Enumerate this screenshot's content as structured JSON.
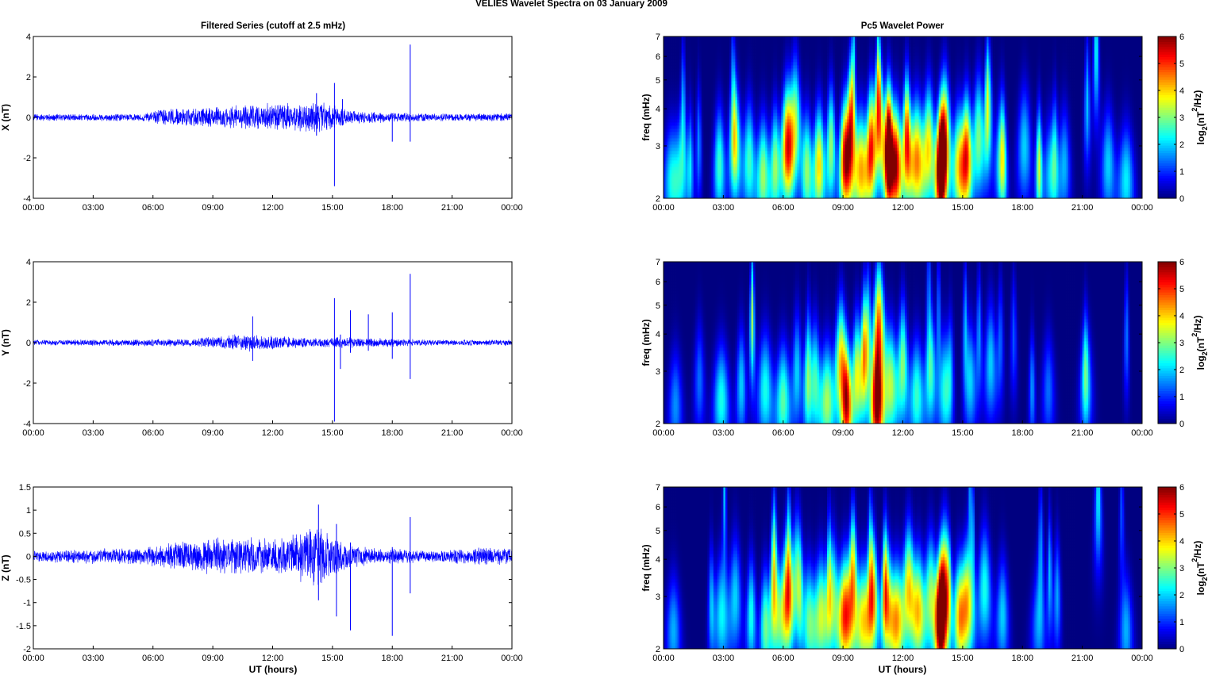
{
  "figure": {
    "title": "VELIES Wavelet Spectra on 03 January   2009",
    "left_column_title": "Filtered Series (cutoff at 2.5 mHz)",
    "right_column_title": "Pc5 Wavelet Power",
    "xlabel": "UT (hours)"
  },
  "colorbar": {
    "label": "log2(nT2/Hz)",
    "label_base": "log",
    "label_sub": "2",
    "label_paren_open": "(nT",
    "label_sup": "2",
    "label_tail": "/Hz)",
    "range": [
      0,
      6
    ],
    "ticks": [
      "0",
      "1",
      "2",
      "3",
      "4",
      "5",
      "6"
    ],
    "colormap": "jet"
  },
  "chart_data": [
    {
      "type": "line",
      "component": "X",
      "ylabel": "X (nT)",
      "xlim": [
        "00:00",
        "24:00"
      ],
      "xticks": [
        "00:00",
        "03:00",
        "06:00",
        "09:00",
        "12:00",
        "15:00",
        "18:00",
        "21:00",
        "00:00"
      ],
      "ylim": [
        -4,
        4
      ],
      "yticks": [
        "-4",
        "-2",
        "0",
        "2",
        "4"
      ],
      "color": "#0000ff",
      "noise_envelope": [
        {
          "t": 0,
          "amp": 0.18
        },
        {
          "t": 5.5,
          "amp": 0.2
        },
        {
          "t": 6.5,
          "amp": 0.45
        },
        {
          "t": 9,
          "amp": 0.55
        },
        {
          "t": 11,
          "amp": 0.7
        },
        {
          "t": 14.2,
          "amp": 0.9
        },
        {
          "t": 16,
          "amp": 0.35
        },
        {
          "t": 20,
          "amp": 0.2
        },
        {
          "t": 24,
          "amp": 0.22
        }
      ],
      "spikes": [
        {
          "t": 14.2,
          "min": -0.9,
          "max": 1.2
        },
        {
          "t": 15.1,
          "min": -3.4,
          "max": 1.7
        },
        {
          "t": 15.5,
          "min": -0.4,
          "max": 0.9
        },
        {
          "t": 18.0,
          "min": -1.2,
          "max": 0.2
        },
        {
          "t": 18.9,
          "min": -1.2,
          "max": 3.6
        }
      ]
    },
    {
      "type": "line",
      "component": "Y",
      "ylabel": "Y (nT)",
      "xlim": [
        "00:00",
        "24:00"
      ],
      "xticks": [
        "00:00",
        "03:00",
        "06:00",
        "09:00",
        "12:00",
        "15:00",
        "18:00",
        "21:00",
        "00:00"
      ],
      "ylim": [
        -4,
        4
      ],
      "yticks": [
        "-4",
        "-2",
        "0",
        "2",
        "4"
      ],
      "color": "#0000ff",
      "noise_envelope": [
        {
          "t": 0,
          "amp": 0.15
        },
        {
          "t": 8,
          "amp": 0.2
        },
        {
          "t": 9.5,
          "amp": 0.4
        },
        {
          "t": 11,
          "amp": 0.45
        },
        {
          "t": 14,
          "amp": 0.25
        },
        {
          "t": 16,
          "amp": 0.3
        },
        {
          "t": 20,
          "amp": 0.15
        },
        {
          "t": 24,
          "amp": 0.15
        }
      ],
      "spikes": [
        {
          "t": 11.0,
          "min": -0.9,
          "max": 1.3
        },
        {
          "t": 15.1,
          "min": -3.9,
          "max": 2.2
        },
        {
          "t": 15.4,
          "min": -1.3,
          "max": 0.4
        },
        {
          "t": 15.9,
          "min": -0.5,
          "max": 1.6
        },
        {
          "t": 16.8,
          "min": -0.4,
          "max": 1.4
        },
        {
          "t": 18.0,
          "min": -0.8,
          "max": 1.5
        },
        {
          "t": 18.9,
          "min": -1.8,
          "max": 3.4
        }
      ]
    },
    {
      "type": "line",
      "component": "Z",
      "ylabel": "Z (nT)",
      "xlim": [
        "00:00",
        "24:00"
      ],
      "xticks": [
        "00:00",
        "03:00",
        "06:00",
        "09:00",
        "12:00",
        "15:00",
        "18:00",
        "21:00",
        "00:00"
      ],
      "ylim": [
        -2,
        1.5
      ],
      "yticks": [
        "-2",
        "-1.5",
        "-1",
        "-0.5",
        "0",
        "0.5",
        "1",
        "1.5"
      ],
      "color": "#0000ff",
      "noise_envelope": [
        {
          "t": 0,
          "amp": 0.13
        },
        {
          "t": 5.5,
          "amp": 0.2
        },
        {
          "t": 6.5,
          "amp": 0.3
        },
        {
          "t": 9.5,
          "amp": 0.45
        },
        {
          "t": 12,
          "amp": 0.4
        },
        {
          "t": 14.3,
          "amp": 0.7
        },
        {
          "t": 16,
          "amp": 0.25
        },
        {
          "t": 20,
          "amp": 0.13
        },
        {
          "t": 21.5,
          "amp": 0.2
        },
        {
          "t": 24,
          "amp": 0.2
        }
      ],
      "spikes": [
        {
          "t": 14.3,
          "min": -0.95,
          "max": 1.12
        },
        {
          "t": 15.2,
          "min": -1.3,
          "max": 0.7
        },
        {
          "t": 15.9,
          "min": -1.6,
          "max": 0.3
        },
        {
          "t": 18.0,
          "min": -1.72,
          "max": 0.2
        },
        {
          "t": 18.9,
          "min": -0.8,
          "max": 0.85
        }
      ]
    },
    {
      "type": "heatmap",
      "component": "X",
      "ylabel": "freq (mHz)",
      "xlim": [
        "00:00",
        "24:00"
      ],
      "xticks": [
        "00:00",
        "03:00",
        "06:00",
        "09:00",
        "12:00",
        "15:00",
        "18:00",
        "21:00",
        "00:00"
      ],
      "ylim": [
        2,
        7
      ],
      "yscale": "log",
      "yticks": [
        "2",
        "3",
        "4",
        "5",
        "6",
        "7"
      ],
      "zlim": [
        0,
        6
      ],
      "blobs": [
        {
          "t": 0.4,
          "f": 2.3,
          "p": 2.2
        },
        {
          "t": 0.9,
          "f": 2.5,
          "p": 1.8
        },
        {
          "t": 2.8,
          "f": 2.6,
          "p": 2.6
        },
        {
          "t": 3.6,
          "f": 3.0,
          "p": 2.4
        },
        {
          "t": 4.3,
          "f": 2.7,
          "p": 2.6
        },
        {
          "t": 5.0,
          "f": 2.4,
          "p": 3.2
        },
        {
          "t": 5.6,
          "f": 2.6,
          "p": 3.0
        },
        {
          "t": 6.2,
          "f": 3.0,
          "p": 4.8
        },
        {
          "t": 6.6,
          "f": 3.6,
          "p": 3.2
        },
        {
          "t": 7.2,
          "f": 2.5,
          "p": 3.0
        },
        {
          "t": 7.8,
          "f": 2.6,
          "p": 4.0
        },
        {
          "t": 8.4,
          "f": 3.0,
          "p": 3.2
        },
        {
          "t": 9.1,
          "f": 2.7,
          "p": 5.4
        },
        {
          "t": 9.4,
          "f": 3.6,
          "p": 4.5
        },
        {
          "t": 9.9,
          "f": 2.5,
          "p": 4.2
        },
        {
          "t": 10.4,
          "f": 3.0,
          "p": 4.6
        },
        {
          "t": 10.8,
          "f": 3.8,
          "p": 4.2
        },
        {
          "t": 11.3,
          "f": 3.0,
          "p": 5.2
        },
        {
          "t": 11.7,
          "f": 2.6,
          "p": 4.8
        },
        {
          "t": 12.2,
          "f": 3.2,
          "p": 5.0
        },
        {
          "t": 12.7,
          "f": 2.7,
          "p": 4.4
        },
        {
          "t": 13.3,
          "f": 3.0,
          "p": 3.8
        },
        {
          "t": 13.9,
          "f": 2.5,
          "p": 6.0
        },
        {
          "t": 14.1,
          "f": 3.2,
          "p": 4.8
        },
        {
          "t": 14.8,
          "f": 2.6,
          "p": 3.6
        },
        {
          "t": 15.2,
          "f": 2.8,
          "p": 4.8
        },
        {
          "t": 15.8,
          "f": 3.2,
          "p": 3.0
        },
        {
          "t": 16.3,
          "f": 4.0,
          "p": 2.6
        },
        {
          "t": 16.9,
          "f": 2.7,
          "p": 2.2
        },
        {
          "t": 18.1,
          "f": 3.0,
          "p": 2.0
        },
        {
          "t": 19.4,
          "f": 2.4,
          "p": 2.0
        },
        {
          "t": 20.1,
          "f": 2.6,
          "p": 1.8
        },
        {
          "t": 21.7,
          "f": 6.5,
          "p": 2.4
        },
        {
          "t": 22.3,
          "f": 2.6,
          "p": 2.0
        },
        {
          "t": 23.2,
          "f": 2.3,
          "p": 2.2
        }
      ]
    },
    {
      "type": "heatmap",
      "component": "Y",
      "ylabel": "freq (mHz)",
      "xlim": [
        "00:00",
        "24:00"
      ],
      "xticks": [
        "00:00",
        "03:00",
        "06:00",
        "09:00",
        "12:00",
        "15:00",
        "18:00",
        "21:00",
        "00:00"
      ],
      "ylim": [
        2,
        7
      ],
      "yscale": "log",
      "yticks": [
        "2",
        "3",
        "4",
        "5",
        "6",
        "7"
      ],
      "zlim": [
        0,
        6
      ],
      "blobs": [
        {
          "t": 0.6,
          "f": 2.3,
          "p": 1.6
        },
        {
          "t": 1.8,
          "f": 2.8,
          "p": 1.4
        },
        {
          "t": 2.9,
          "f": 2.4,
          "p": 2.4
        },
        {
          "t": 3.9,
          "f": 2.7,
          "p": 2.0
        },
        {
          "t": 5.1,
          "f": 2.6,
          "p": 2.4
        },
        {
          "t": 6.0,
          "f": 2.4,
          "p": 2.8
        },
        {
          "t": 6.7,
          "f": 3.0,
          "p": 2.0
        },
        {
          "t": 7.6,
          "f": 2.8,
          "p": 2.6
        },
        {
          "t": 8.2,
          "f": 2.4,
          "p": 3.2
        },
        {
          "t": 8.9,
          "f": 3.2,
          "p": 4.0
        },
        {
          "t": 9.2,
          "f": 2.3,
          "p": 4.6
        },
        {
          "t": 9.7,
          "f": 2.9,
          "p": 3.6
        },
        {
          "t": 10.1,
          "f": 3.6,
          "p": 3.0
        },
        {
          "t": 10.7,
          "f": 2.3,
          "p": 5.6
        },
        {
          "t": 10.8,
          "f": 4.2,
          "p": 4.6
        },
        {
          "t": 11.4,
          "f": 2.7,
          "p": 3.2
        },
        {
          "t": 12.0,
          "f": 3.2,
          "p": 3.0
        },
        {
          "t": 12.7,
          "f": 2.5,
          "p": 2.6
        },
        {
          "t": 13.4,
          "f": 3.0,
          "p": 2.6
        },
        {
          "t": 14.1,
          "f": 2.6,
          "p": 2.4
        },
        {
          "t": 15.4,
          "f": 2.8,
          "p": 2.0
        },
        {
          "t": 16.4,
          "f": 3.2,
          "p": 2.0
        },
        {
          "t": 19.3,
          "f": 2.6,
          "p": 1.4
        },
        {
          "t": 21.2,
          "f": 2.7,
          "p": 1.6
        }
      ]
    },
    {
      "type": "heatmap",
      "component": "Z",
      "ylabel": "freq (mHz)",
      "xlim": [
        "00:00",
        "24:00"
      ],
      "xticks": [
        "00:00",
        "03:00",
        "06:00",
        "09:00",
        "12:00",
        "15:00",
        "18:00",
        "21:00",
        "00:00"
      ],
      "ylim": [
        2,
        7
      ],
      "yscale": "log",
      "yticks": [
        "2",
        "3",
        "4",
        "5",
        "6",
        "7"
      ],
      "zlim": [
        0,
        6
      ],
      "blobs": [
        {
          "t": 0.5,
          "f": 2.3,
          "p": 1.8
        },
        {
          "t": 2.9,
          "f": 2.6,
          "p": 2.2
        },
        {
          "t": 3.6,
          "f": 3.0,
          "p": 2.0
        },
        {
          "t": 4.4,
          "f": 2.6,
          "p": 2.4
        },
        {
          "t": 5.1,
          "f": 2.4,
          "p": 2.8
        },
        {
          "t": 5.7,
          "f": 2.6,
          "p": 2.6
        },
        {
          "t": 6.2,
          "f": 3.0,
          "p": 4.4
        },
        {
          "t": 6.7,
          "f": 3.5,
          "p": 2.8
        },
        {
          "t": 7.3,
          "f": 2.5,
          "p": 2.6
        },
        {
          "t": 7.9,
          "f": 2.6,
          "p": 3.4
        },
        {
          "t": 8.5,
          "f": 3.0,
          "p": 2.8
        },
        {
          "t": 9.1,
          "f": 2.6,
          "p": 5.0
        },
        {
          "t": 9.5,
          "f": 3.6,
          "p": 4.0
        },
        {
          "t": 10.0,
          "f": 2.5,
          "p": 3.8
        },
        {
          "t": 10.5,
          "f": 3.0,
          "p": 4.2
        },
        {
          "t": 11.2,
          "f": 2.9,
          "p": 4.0
        },
        {
          "t": 11.7,
          "f": 2.5,
          "p": 4.0
        },
        {
          "t": 12.3,
          "f": 3.2,
          "p": 4.0
        },
        {
          "t": 12.8,
          "f": 2.7,
          "p": 3.6
        },
        {
          "t": 13.4,
          "f": 3.0,
          "p": 3.2
        },
        {
          "t": 13.9,
          "f": 2.5,
          "p": 5.8
        },
        {
          "t": 14.1,
          "f": 3.3,
          "p": 4.4
        },
        {
          "t": 14.8,
          "f": 2.6,
          "p": 3.0
        },
        {
          "t": 15.2,
          "f": 2.8,
          "p": 4.2
        },
        {
          "t": 16.1,
          "f": 3.2,
          "p": 2.4
        },
        {
          "t": 17.0,
          "f": 2.6,
          "p": 2.0
        },
        {
          "t": 18.8,
          "f": 2.4,
          "p": 1.6
        },
        {
          "t": 21.8,
          "f": 6.5,
          "p": 2.2
        },
        {
          "t": 23.2,
          "f": 2.3,
          "p": 1.8
        }
      ]
    }
  ]
}
